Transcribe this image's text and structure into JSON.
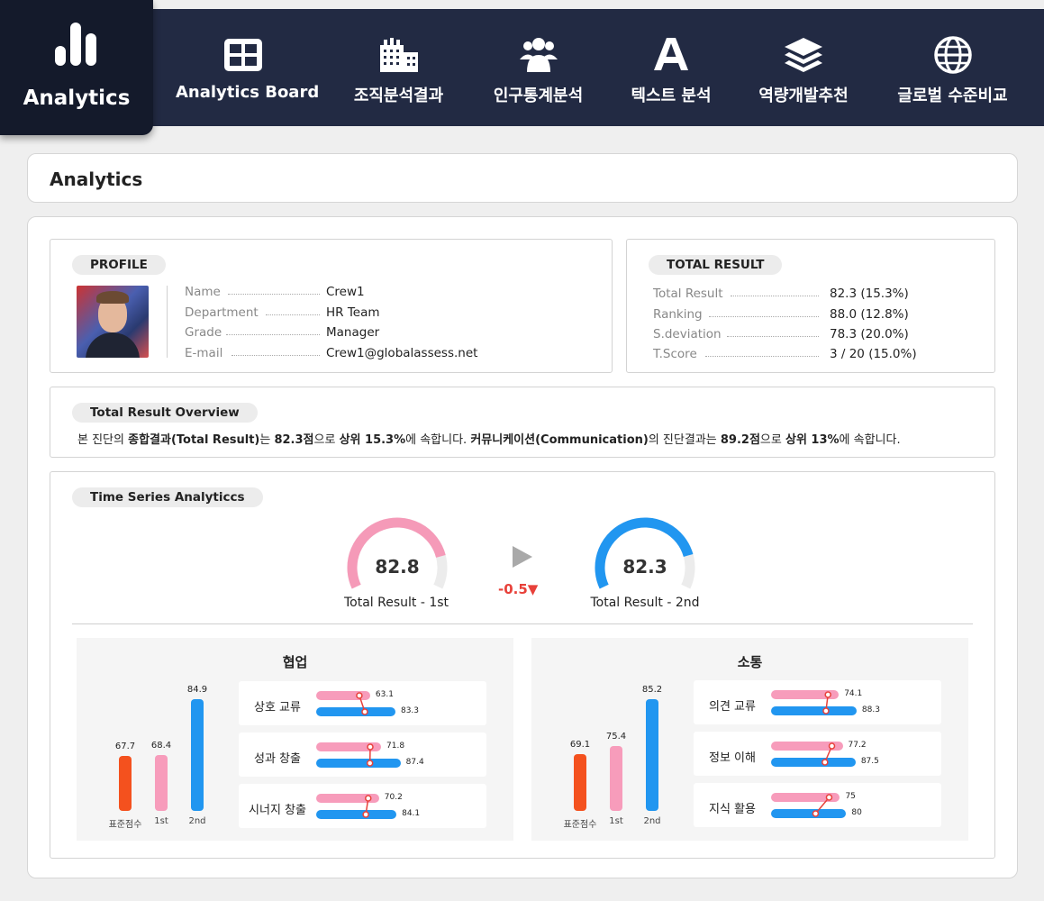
{
  "brand": {
    "title": "Analytics"
  },
  "nav": [
    {
      "label": "Analytics Board",
      "icon": "dashboard-grid-icon"
    },
    {
      "label": "조직분석결과",
      "icon": "building-icon"
    },
    {
      "label": "인구통계분석",
      "icon": "users-group-icon"
    },
    {
      "label": "텍스트 분석",
      "icon": "letter-a-icon"
    },
    {
      "label": "역량개발추천",
      "icon": "layers-icon"
    },
    {
      "label": "글로벌 수준비교",
      "icon": "globe-icon"
    }
  ],
  "page": {
    "title": "Analytics"
  },
  "profile": {
    "heading": "PROFILE",
    "fields": [
      {
        "key": "Name",
        "value": "Crew1"
      },
      {
        "key": "Department",
        "value": "HR Team"
      },
      {
        "key": "Grade",
        "value": "Manager"
      },
      {
        "key": "E-mail",
        "value": "Crew1@globalassess.net"
      }
    ]
  },
  "total_result": {
    "heading": "TOTAL RESULT",
    "fields": [
      {
        "key": "Total Result",
        "value": "82.3 (15.3%)"
      },
      {
        "key": "Ranking",
        "value": "88.0 (12.8%)"
      },
      {
        "key": "S.deviation",
        "value": "78.3 (20.0%)"
      },
      {
        "key": "T.Score",
        "value": "3 / 20 (15.0%)"
      }
    ]
  },
  "overview": {
    "heading": "Total Result Overview",
    "t1": "본 진단의 ",
    "b1": "종합결과(Total Result)",
    "t2": "는 ",
    "b2": "82.3점",
    "t3": "으로 ",
    "b3": "상위 15.3%",
    "t4": "에 속합니다. ",
    "b4": "커뮤니케이션(Communication)",
    "t5": "의 진단결과는 ",
    "b5": "89.2점",
    "t6": "으로 ",
    "b6": "상위 13%",
    "t7": "에 속합니다."
  },
  "time_series": {
    "heading": "Time Series Analyticcs",
    "first": {
      "value": "82.8",
      "label": "Total Result - 1st",
      "fill": 0.828,
      "color": "#f59ab8"
    },
    "second": {
      "value": "82.3",
      "label": "Total Result - 2nd",
      "fill": 0.823,
      "color": "#2196f0"
    },
    "delta": "-0.5▼"
  },
  "colors": {
    "standard": "#f4511e",
    "first": "#f79cbb",
    "second": "#2196f0",
    "nav": "#222a43"
  },
  "chart_data": [
    {
      "type": "bar",
      "title": "협업",
      "categories": [
        "표준점수",
        "1st",
        "2nd"
      ],
      "values": [
        67.7,
        68.4,
        84.9
      ],
      "labels": [
        "67.7",
        "68.4",
        "84.9"
      ],
      "items": [
        {
          "name": "상호 교류",
          "first": 63.1,
          "second": 83.3,
          "first_label": "63.1",
          "second_label": "83.3"
        },
        {
          "name": "성과 창출",
          "first": 71.8,
          "second": 87.4,
          "first_label": "71.8",
          "second_label": "87.4"
        },
        {
          "name": "시너지 창출",
          "first": 70.2,
          "second": 84.1,
          "first_label": "70.2",
          "second_label": "84.1"
        }
      ]
    },
    {
      "type": "bar",
      "title": "소통",
      "categories": [
        "표준점수",
        "1st",
        "2nd"
      ],
      "values": [
        69.1,
        75.4,
        85.2
      ],
      "labels": [
        "69.1",
        "75.4",
        "85.2"
      ],
      "items": [
        {
          "name": "의견 교류",
          "first": 74.1,
          "second": 88.3,
          "first_label": "74.1",
          "second_label": "88.3"
        },
        {
          "name": "정보 이해",
          "first": 77.2,
          "second": 87.5,
          "first_label": "77.2",
          "second_label": "87.5"
        },
        {
          "name": "지식 활용",
          "first": 75,
          "second": 80,
          "first_label": "75",
          "second_label": "80"
        }
      ]
    }
  ]
}
